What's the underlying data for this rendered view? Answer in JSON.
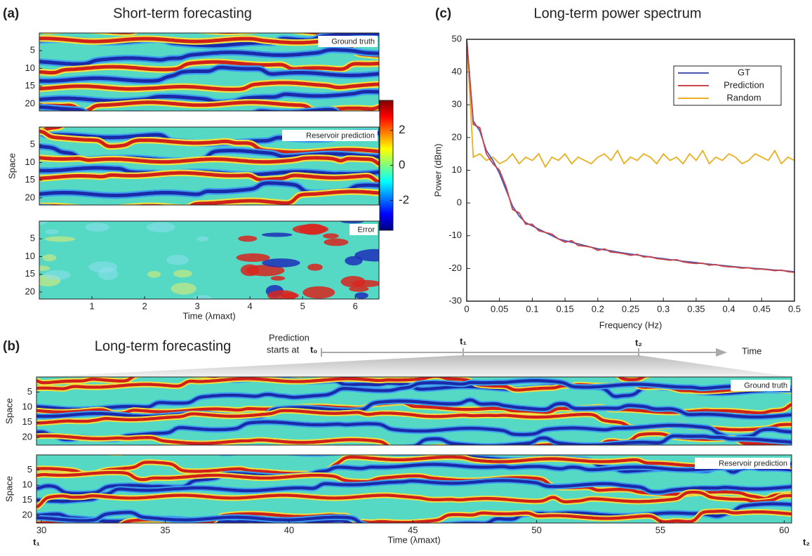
{
  "chart_data": [
    {
      "type": "heatmap",
      "panel_label": "(a)",
      "title": "Short-term forecasting",
      "panels": [
        "Ground truth",
        "Reservoir prediction",
        "Error"
      ],
      "xlabel": "Time (λmaxt)",
      "ylabel": "Space",
      "xlim": [
        0,
        6.45
      ],
      "xticks": [
        1,
        2,
        3,
        4,
        5,
        6
      ],
      "ylim": [
        0,
        22
      ],
      "yticks": [
        5,
        10,
        15,
        20
      ],
      "colorbar": {
        "lim": [
          -3.7,
          3.7
        ],
        "ticks": [
          -2,
          0,
          2
        ]
      }
    },
    {
      "type": "line",
      "panel_label": "(c)",
      "title": "Long-term power spectrum",
      "xlabel": "Frequency (Hz)",
      "ylabel": "Power (dBm)",
      "xlim": [
        0,
        0.5
      ],
      "xticks": [
        0,
        0.05,
        0.1,
        0.15,
        0.2,
        0.25,
        0.3,
        0.35,
        0.4,
        0.45,
        0.5
      ],
      "ylim": [
        -30,
        50
      ],
      "yticks": [
        -30,
        -20,
        -10,
        0,
        10,
        20,
        30,
        40,
        50
      ],
      "legend": "upper right",
      "x": [
        0,
        0.01,
        0.02,
        0.03,
        0.04,
        0.05,
        0.06,
        0.07,
        0.08,
        0.09,
        0.1,
        0.11,
        0.12,
        0.13,
        0.14,
        0.15,
        0.16,
        0.17,
        0.18,
        0.19,
        0.2,
        0.21,
        0.22,
        0.23,
        0.24,
        0.25,
        0.26,
        0.27,
        0.28,
        0.29,
        0.3,
        0.31,
        0.32,
        0.33,
        0.34,
        0.35,
        0.36,
        0.37,
        0.38,
        0.39,
        0.4,
        0.41,
        0.42,
        0.43,
        0.44,
        0.45,
        0.46,
        0.47,
        0.48,
        0.49,
        0.5
      ],
      "series": [
        {
          "name": "GT",
          "color": "#4a56b0",
          "values": [
            50,
            25,
            22,
            16,
            13,
            9,
            4,
            -1,
            -4,
            -6,
            -7,
            -8,
            -9,
            -10,
            -11,
            -11.5,
            -12,
            -12.5,
            -13,
            -13.5,
            -14,
            -14.3,
            -14.6,
            -15,
            -15.3,
            -15.6,
            -15.9,
            -16.2,
            -16.5,
            -16.8,
            -17,
            -17.3,
            -17.5,
            -17.8,
            -18,
            -18.2,
            -18.5,
            -18.7,
            -18.9,
            -19.1,
            -19.3,
            -19.5,
            -19.7,
            -19.8,
            -20,
            -20.1,
            -20.3,
            -20.5,
            -20.6,
            -20.8,
            -21
          ]
        },
        {
          "name": "Prediction",
          "color": "#c8454a",
          "values": [
            50,
            24,
            23,
            15,
            12,
            10,
            5,
            -2,
            -3,
            -6.5,
            -6.5,
            -8.5,
            -9,
            -9.5,
            -11,
            -12,
            -11.5,
            -13,
            -13.2,
            -13.5,
            -14.5,
            -14,
            -15,
            -15.2,
            -15.5,
            -16,
            -15.7,
            -16.5,
            -16.4,
            -17,
            -17.2,
            -17.5,
            -17.3,
            -18,
            -18.3,
            -18.5,
            -18.4,
            -19,
            -18.8,
            -19.3,
            -19.5,
            -19.6,
            -19.9,
            -19.8,
            -20.2,
            -20.2,
            -20.4,
            -20.7,
            -20.5,
            -21,
            -21.2
          ]
        },
        {
          "name": "Random",
          "color": "#e8b020",
          "values": [
            50,
            14,
            15,
            13,
            14,
            12,
            13,
            15,
            12,
            14,
            13,
            15,
            11,
            14,
            13,
            15,
            12,
            14,
            13,
            12,
            14,
            15,
            13,
            16,
            12,
            14,
            13,
            15,
            14,
            12,
            15,
            13,
            14,
            12,
            15,
            13,
            16,
            12,
            14,
            13,
            15,
            14,
            12,
            13,
            15,
            14,
            13,
            16,
            12,
            14,
            13
          ]
        }
      ]
    },
    {
      "type": "heatmap",
      "panel_label": "(b)",
      "title": "Long-term forecasting",
      "panels": [
        "Ground truth",
        "Reservoir prediction"
      ],
      "xlabel": "Time (λmaxt)",
      "ylabel": "Space",
      "xlim": [
        29.8,
        60.3
      ],
      "xticks": [
        30,
        35,
        40,
        45,
        50,
        55,
        60
      ],
      "ylim": [
        0,
        22.5
      ],
      "yticks": [
        5,
        10,
        15,
        20
      ],
      "timeline": {
        "start_label": "Prediction",
        "start_label_2": "starts at",
        "t0": "t₀",
        "t1": "t₁",
        "t2": "t₂",
        "axis_label": "Time"
      }
    }
  ]
}
